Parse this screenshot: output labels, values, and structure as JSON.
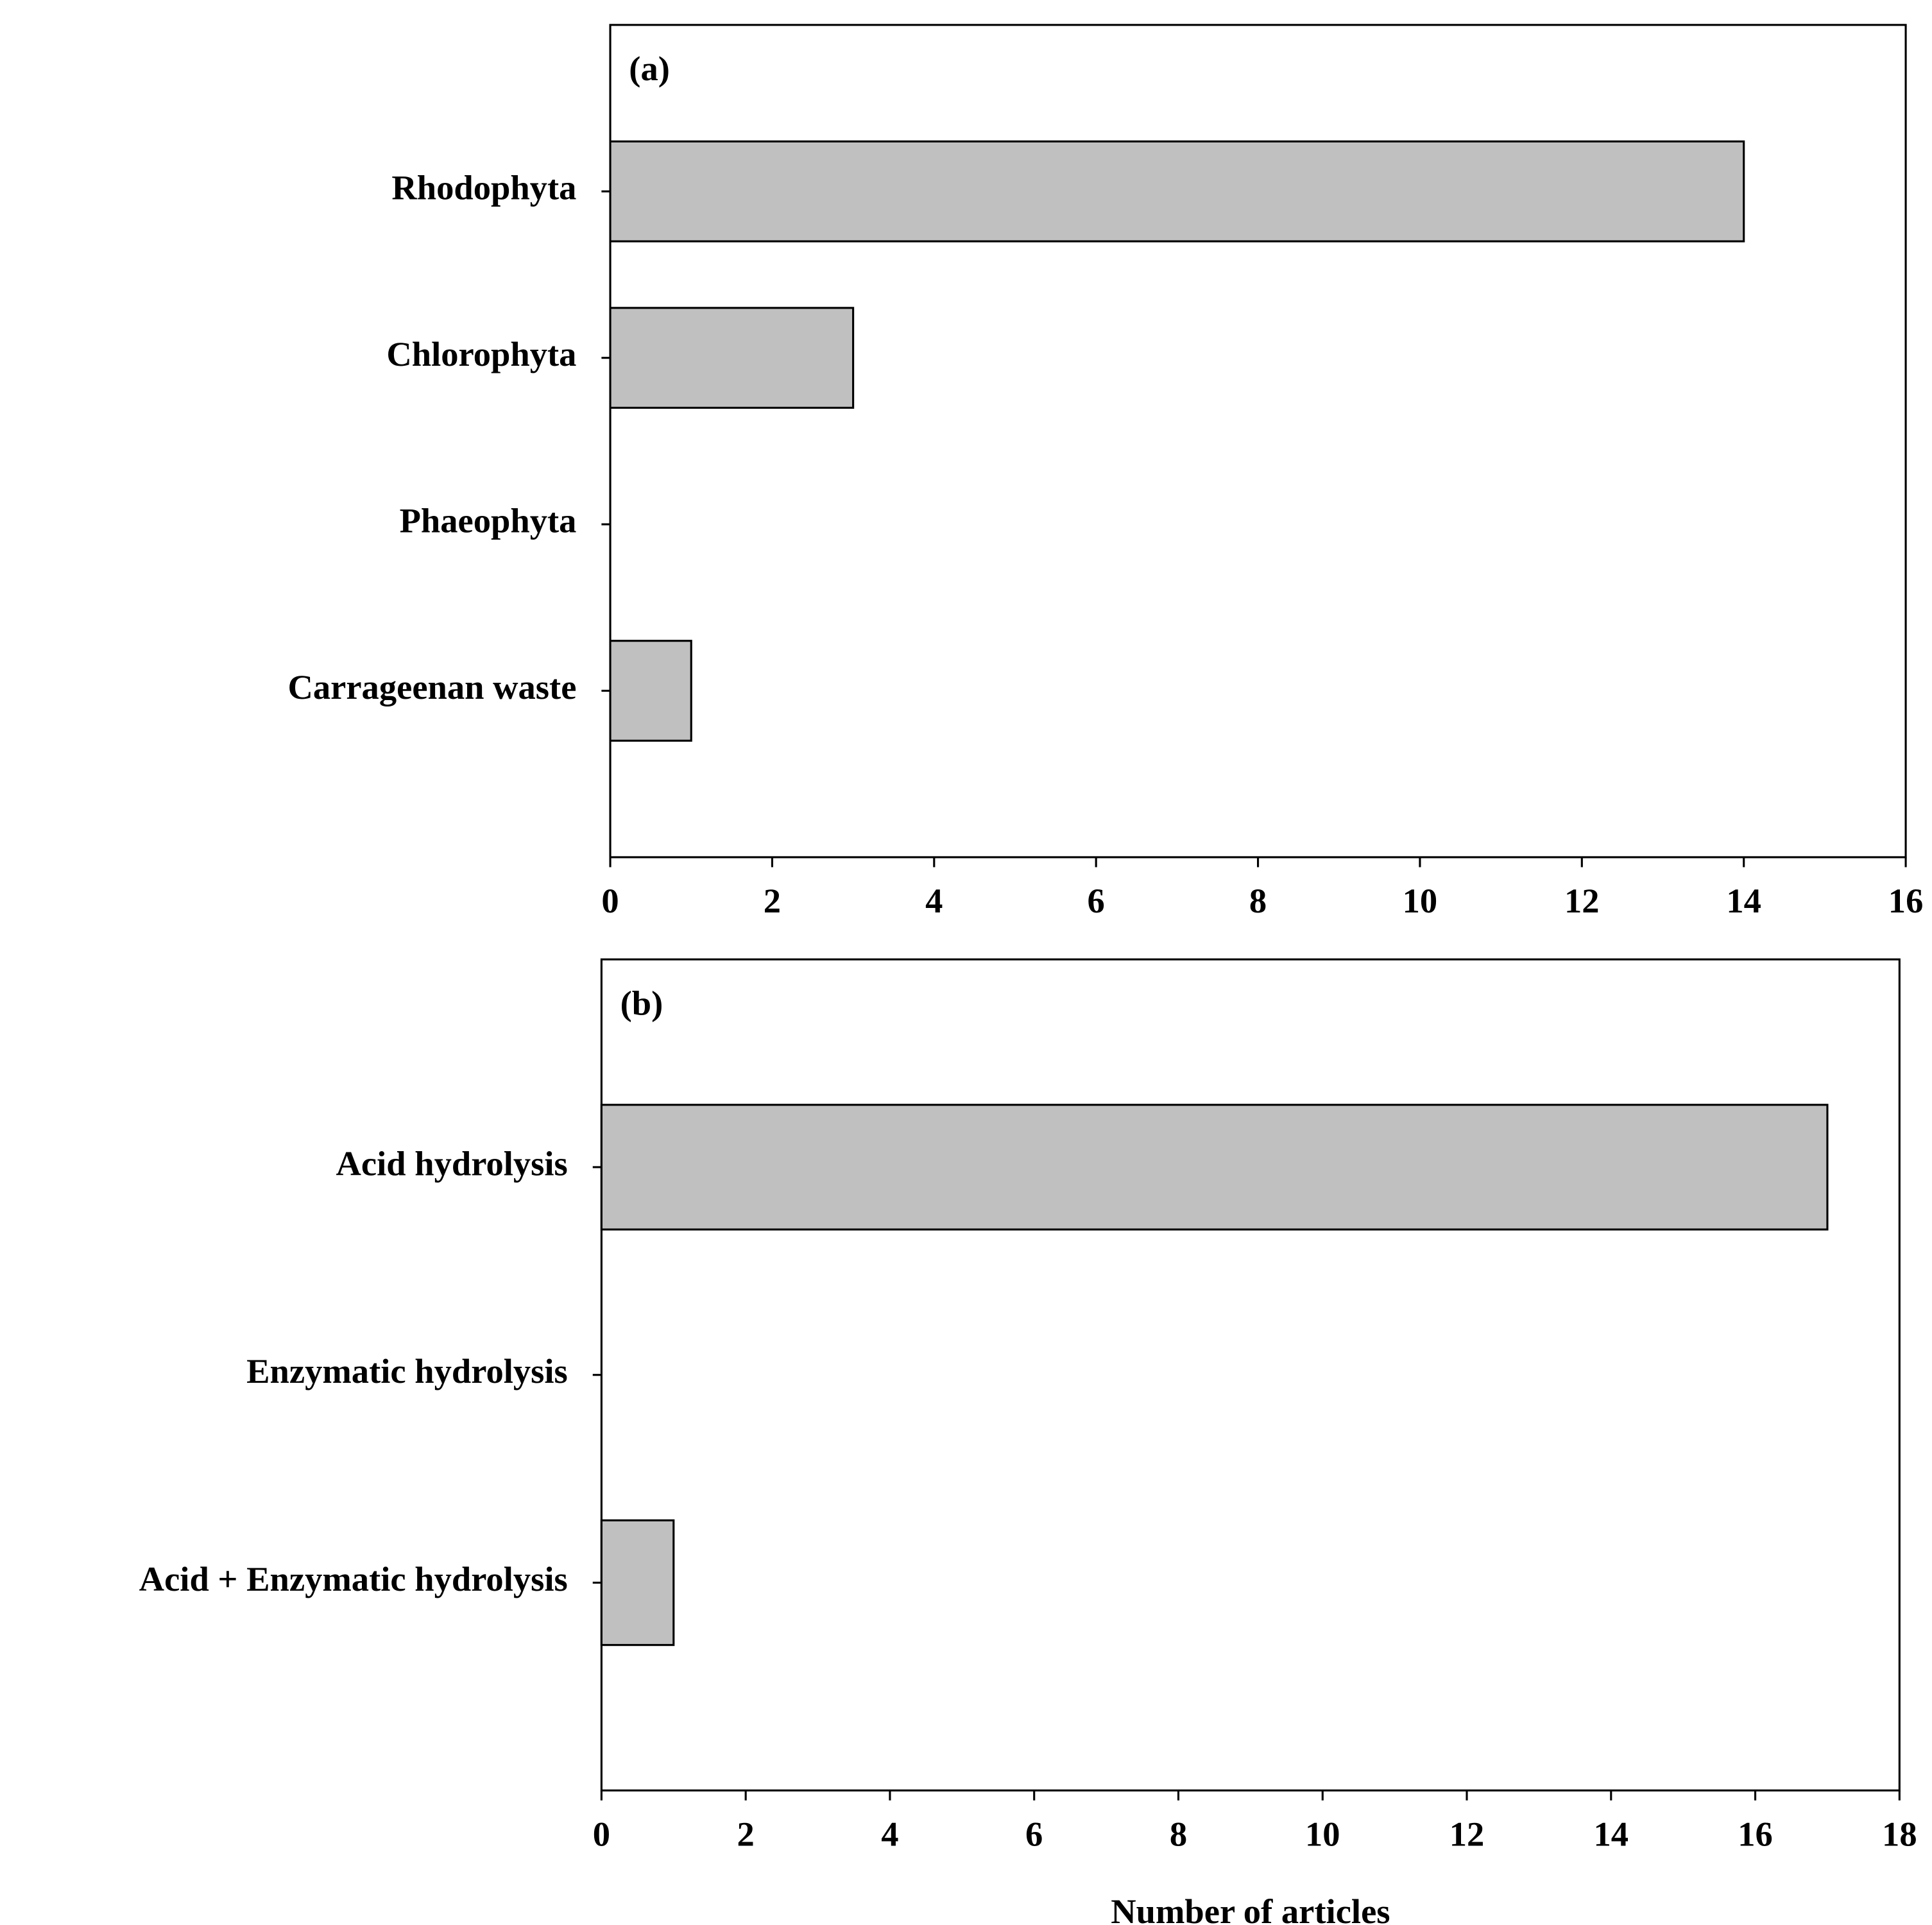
{
  "chart_data": [
    {
      "type": "hbar",
      "panel_label": "(a)",
      "categories": [
        "Rhodophyta",
        "Chlorophyta",
        "Phaeophyta",
        "Carrageenan waste"
      ],
      "values": [
        14,
        3,
        0,
        1
      ],
      "color": "#c0c0c0",
      "xlim": [
        0,
        16
      ],
      "xticks": [
        0,
        2,
        4,
        6,
        8,
        10,
        12,
        14,
        16
      ]
    },
    {
      "type": "hbar",
      "panel_label": "(b)",
      "categories": [
        "Acid hydrolysis",
        "Enzymatic hydrolysis",
        "Acid + Enzymatic hydrolysis"
      ],
      "values": [
        17,
        0,
        1
      ],
      "color": "#c0c0c0",
      "xlim": [
        0,
        18
      ],
      "xticks": [
        0,
        2,
        4,
        6,
        8,
        10,
        12,
        14,
        16,
        18
      ],
      "x_label": "Number of articles"
    }
  ]
}
